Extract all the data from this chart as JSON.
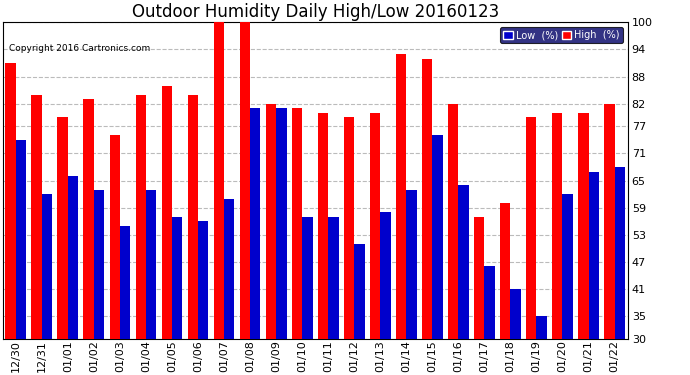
{
  "title": "Outdoor Humidity Daily High/Low 20160123",
  "copyright": "Copyright 2016 Cartronics.com",
  "categories": [
    "12/30",
    "12/31",
    "01/01",
    "01/02",
    "01/03",
    "01/04",
    "01/05",
    "01/06",
    "01/07",
    "01/08",
    "01/09",
    "01/10",
    "01/11",
    "01/12",
    "01/13",
    "01/14",
    "01/15",
    "01/16",
    "01/17",
    "01/18",
    "01/19",
    "01/20",
    "01/21",
    "01/22"
  ],
  "high": [
    91,
    84,
    79,
    83,
    75,
    84,
    86,
    84,
    100,
    100,
    82,
    81,
    80,
    79,
    80,
    93,
    92,
    82,
    57,
    60,
    79,
    80,
    80,
    82
  ],
  "low": [
    74,
    62,
    66,
    63,
    55,
    63,
    57,
    56,
    61,
    81,
    81,
    57,
    57,
    51,
    58,
    63,
    75,
    64,
    46,
    41,
    35,
    62,
    67,
    68
  ],
  "high_color": "#ff0000",
  "low_color": "#0000cc",
  "bg_color": "#ffffff",
  "grid_color": "#bbbbbb",
  "ylim_min": 30,
  "ylim_max": 100,
  "yticks": [
    30,
    35,
    41,
    47,
    53,
    59,
    65,
    71,
    77,
    82,
    88,
    94,
    100
  ],
  "bar_width": 0.4,
  "title_fontsize": 12,
  "tick_fontsize": 8,
  "legend_low_label": "Low  (%)",
  "legend_high_label": "High  (%)"
}
